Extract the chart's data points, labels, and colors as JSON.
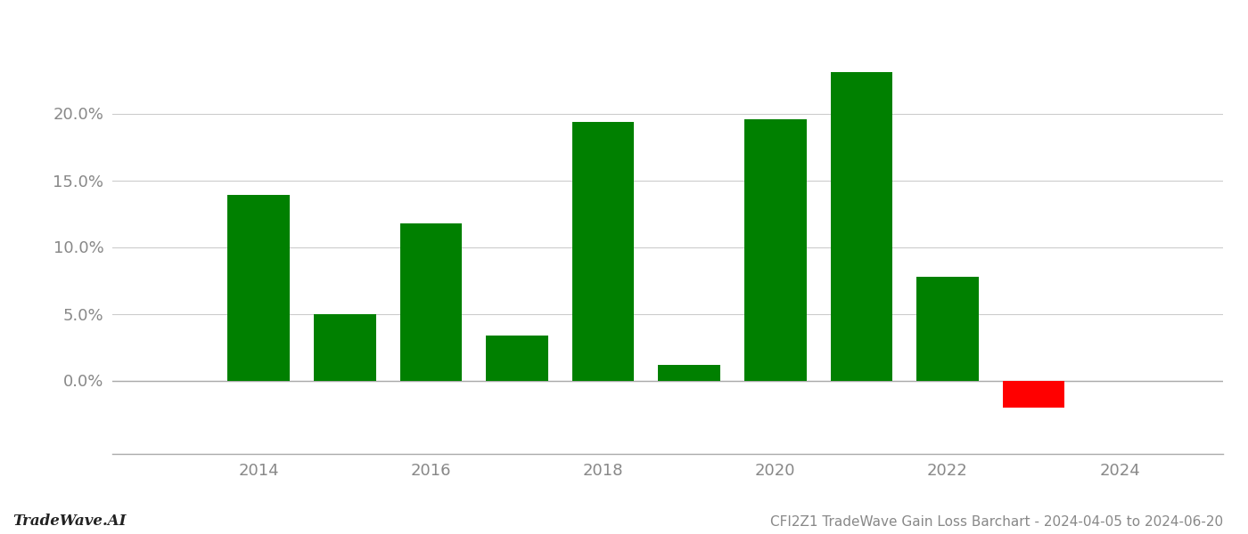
{
  "years": [
    2014,
    2015,
    2016,
    2017,
    2018,
    2019,
    2020,
    2021,
    2022,
    2023
  ],
  "values": [
    0.139,
    0.05,
    0.118,
    0.034,
    0.194,
    0.012,
    0.196,
    0.231,
    0.078,
    -0.02
  ],
  "bar_colors_positive": "#008000",
  "bar_colors_negative": "#ff0000",
  "title": "CFI2Z1 TradeWave Gain Loss Barchart - 2024-04-05 to 2024-06-20",
  "watermark": "TradeWave.AI",
  "xlim": [
    2012.3,
    2025.2
  ],
  "ylim": [
    -0.055,
    0.265
  ],
  "yticks": [
    0.0,
    0.05,
    0.1,
    0.15,
    0.2
  ],
  "ytick_labels": [
    "0.0%",
    "5.0%",
    "10.0%",
    "15.0%",
    "20.0%"
  ],
  "xtick_labels": [
    "2014",
    "2016",
    "2018",
    "2020",
    "2022",
    "2024"
  ],
  "xtick_positions": [
    2014,
    2016,
    2018,
    2020,
    2022,
    2024
  ],
  "bar_width": 0.72,
  "background_color": "#ffffff",
  "grid_color": "#cccccc",
  "title_fontsize": 11,
  "watermark_fontsize": 12,
  "tick_fontsize": 13
}
